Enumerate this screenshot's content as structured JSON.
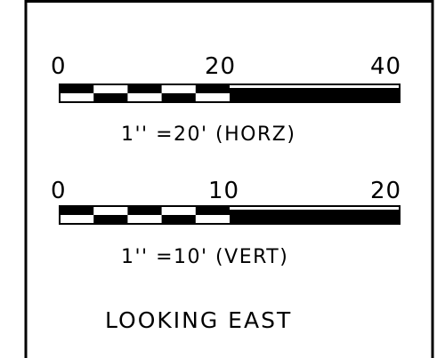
{
  "horizontal_scale": {
    "tick_labels": [
      "0",
      "20",
      "40"
    ],
    "max_value": 40,
    "checkered_segments": 5,
    "caption": "1'' =20' (HORZ)"
  },
  "vertical_scale": {
    "tick_labels": [
      "0",
      "10",
      "20"
    ],
    "max_value": 20,
    "checkered_segments": 5,
    "caption": "1'' =10' (VERT)"
  },
  "footer_label": "LOOKING EAST",
  "colors": {
    "ink": "#000000",
    "paper": "#ffffff"
  }
}
